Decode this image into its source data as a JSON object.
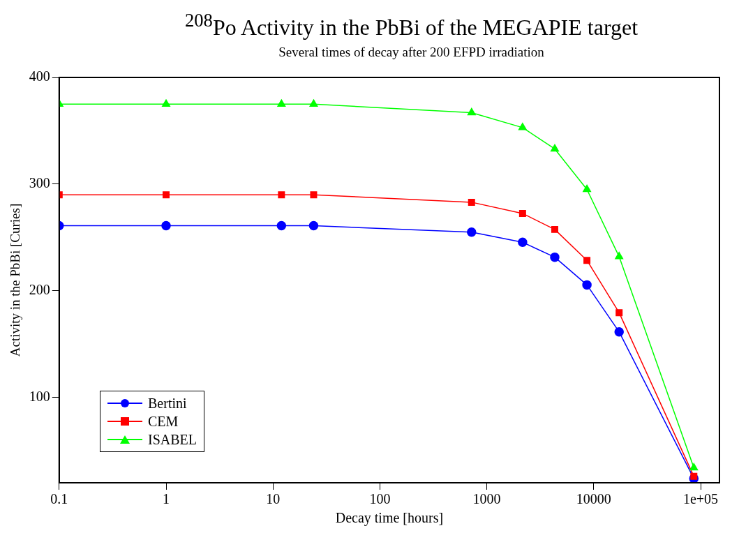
{
  "chart_data": {
    "type": "line",
    "title": "$^{208}$Po Activity  in the PbBi of the MEGAPIE target",
    "subtitle": "Several times of decay after 200 EFPD irradiation",
    "xlabel": "Decay time [hours]",
    "ylabel": "Activity in the PbBi [Curies]",
    "x": [
      0.1,
      1,
      12,
      24,
      720,
      2160,
      4320,
      8640,
      17280,
      86400
    ],
    "series": [
      {
        "name": "Bertini",
        "color": "#0000ff",
        "marker": "circle",
        "values": [
          261,
          261,
          261,
          261,
          255,
          245.5,
          231.5,
          205.5,
          161.5,
          24
        ]
      },
      {
        "name": "CEM",
        "color": "#ff0000",
        "marker": "square",
        "values": [
          290,
          290,
          290,
          290,
          283,
          272.5,
          257.5,
          228.5,
          179.5,
          26
        ]
      },
      {
        "name": "ISABEL",
        "color": "#00ff00",
        "marker": "triangle",
        "values": [
          375,
          375,
          375,
          375,
          367,
          353,
          333,
          295,
          232,
          34
        ]
      }
    ],
    "log": "x",
    "xlim": [
      0.1,
      150000
    ],
    "xticks": [
      0.1,
      1,
      10,
      100,
      1000,
      10000,
      {
        "value": 100000,
        "label": "1e+05"
      }
    ],
    "ylim": [
      20,
      400
    ],
    "yticks": [
      100,
      200,
      300,
      400
    ],
    "grid": false,
    "legend": "bottom left",
    "line_style": "solid"
  }
}
